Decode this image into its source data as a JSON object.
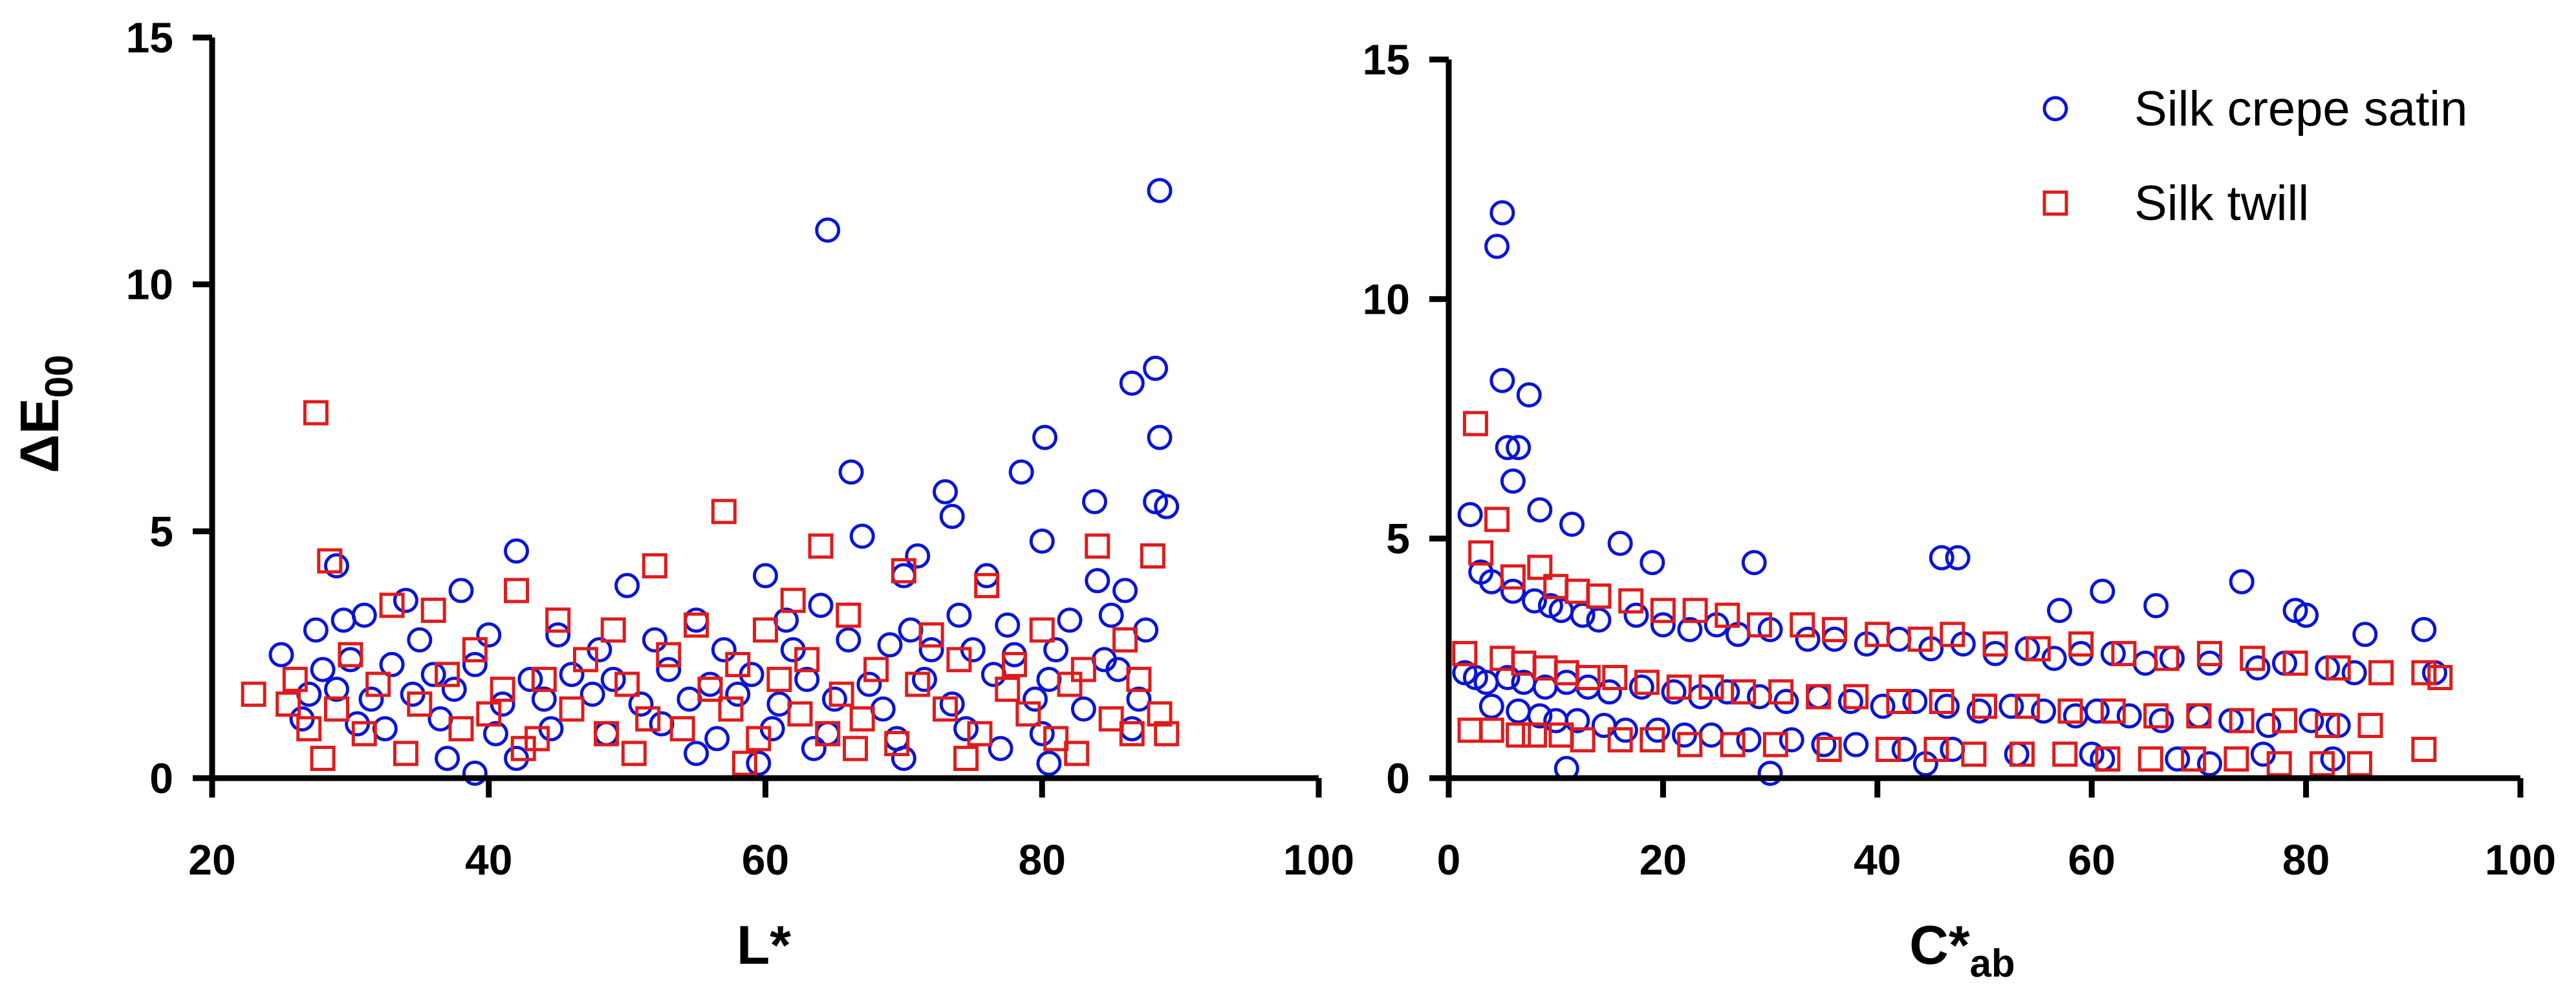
{
  "colors": {
    "satin": "#0a14d6",
    "twill": "#e01b1b",
    "axis": "#000000"
  },
  "legend": {
    "placement": "top-right of right panel",
    "items": [
      {
        "label": "Silk crepe satin",
        "marker": "circle",
        "color": "#0a14d6"
      },
      {
        "label": "Silk twill",
        "marker": "square",
        "color": "#e01b1b"
      }
    ]
  },
  "chart_data": [
    {
      "type": "scatter",
      "title": "",
      "xlabel": "L*",
      "ylabel": "ΔE00",
      "xlim": [
        20,
        100
      ],
      "ylim": [
        0,
        15
      ],
      "xticks": [
        "20",
        "40",
        "60",
        "80",
        "100"
      ],
      "yticks": [
        "0",
        "5",
        "10",
        "15"
      ],
      "grid": false,
      "series": [
        {
          "name": "Silk crepe satin",
          "marker": "circle",
          "color": "#0a14d6",
          "x": [
            64.5,
            88.5,
            88.2,
            86.5,
            88.5,
            80.2,
            66.2,
            78.5,
            73.0,
            83.8,
            88.2,
            89.0,
            42.0,
            73.5,
            29.0,
            80.0,
            67.0,
            71.0,
            70.0,
            76.0,
            86.0,
            60.0,
            84.0,
            50.0,
            38.0,
            34.0,
            29.5,
            25.0,
            27.5,
            55.0,
            61.5,
            64.0,
            70.5,
            74.0,
            77.5,
            82.0,
            85.0,
            87.5,
            31.0,
            35.0,
            40.0,
            45.0,
            48.0,
            52.0,
            57.0,
            62.0,
            66.0,
            69.0,
            72.0,
            75.0,
            78.0,
            81.0,
            84.5,
            28.0,
            30.0,
            33.0,
            36.0,
            39.0,
            43.0,
            46.0,
            49.0,
            53.0,
            56.0,
            59.0,
            63.0,
            67.5,
            71.5,
            76.5,
            80.5,
            85.5,
            27.0,
            29.0,
            31.5,
            34.5,
            37.5,
            41.0,
            44.0,
            47.5,
            51.0,
            54.5,
            58.0,
            61.0,
            65.0,
            68.5,
            73.5,
            79.5,
            83.0,
            87.0,
            26.5,
            30.5,
            32.5,
            36.5,
            40.5,
            44.5,
            48.5,
            52.5,
            56.5,
            60.5,
            64.5,
            69.5,
            74.5,
            80.0,
            86.5,
            39.0,
            59.5,
            80.5,
            42.0,
            37.0,
            55.0,
            63.5,
            70.0,
            77.0
          ],
          "y": [
            11.1,
            11.9,
            8.3,
            8.0,
            6.9,
            6.9,
            6.2,
            6.2,
            5.8,
            5.6,
            5.6,
            5.5,
            4.6,
            5.3,
            4.3,
            4.8,
            4.9,
            4.5,
            4.1,
            4.1,
            3.8,
            4.1,
            4.0,
            3.9,
            3.8,
            3.6,
            3.2,
            2.5,
            3.0,
            3.2,
            3.2,
            3.5,
            3.0,
            3.3,
            3.1,
            3.2,
            3.3,
            3.0,
            3.3,
            2.8,
            2.9,
            2.9,
            2.6,
            2.8,
            2.6,
            2.6,
            2.8,
            2.7,
            2.6,
            2.6,
            2.5,
            2.6,
            2.4,
            2.2,
            2.4,
            2.3,
            2.1,
            2.3,
            2.0,
            2.1,
            2.0,
            2.2,
            1.9,
            2.1,
            2.0,
            1.9,
            2.0,
            2.1,
            2.0,
            2.2,
            1.7,
            1.8,
            1.6,
            1.7,
            1.8,
            1.5,
            1.6,
            1.7,
            1.5,
            1.6,
            1.7,
            1.5,
            1.6,
            1.4,
            1.5,
            1.6,
            1.4,
            1.6,
            1.2,
            1.1,
            1.0,
            1.2,
            0.9,
            1.0,
            0.9,
            1.1,
            0.8,
            1.0,
            0.9,
            0.8,
            1.0,
            0.9,
            1.0,
            0.1,
            0.3,
            0.3,
            0.4,
            0.4,
            0.5,
            0.6,
            0.4,
            0.6
          ]
        },
        {
          "name": "Silk twill",
          "marker": "square",
          "color": "#e01b1b",
          "x": [
            27.5,
            57.0,
            28.5,
            52.0,
            64.0,
            84.0,
            88.0,
            70.0,
            76.0,
            62.0,
            42.0,
            33.0,
            36.0,
            45.0,
            49.0,
            55.0,
            60.0,
            66.0,
            72.0,
            80.0,
            86.0,
            23.0,
            30.0,
            39.0,
            47.0,
            53.0,
            58.0,
            63.0,
            68.0,
            74.0,
            78.0,
            83.0,
            26.0,
            32.0,
            37.0,
            41.0,
            44.0,
            50.0,
            56.0,
            61.0,
            65.5,
            71.0,
            77.5,
            82.0,
            87.0,
            25.5,
            29.0,
            35.0,
            40.0,
            46.0,
            51.5,
            57.5,
            62.5,
            67.0,
            73.0,
            79.0,
            85.0,
            88.5,
            27.0,
            31.0,
            38.0,
            43.5,
            48.5,
            54.0,
            59.5,
            64.5,
            69.5,
            75.5,
            81.0,
            86.5,
            28.0,
            34.0,
            42.5,
            50.5,
            58.5,
            66.5,
            74.5,
            82.5,
            89.0
          ],
          "y": [
            7.4,
            5.4,
            4.4,
            4.3,
            4.7,
            4.7,
            4.5,
            4.2,
            3.9,
            3.6,
            3.8,
            3.5,
            3.4,
            3.2,
            3.0,
            3.1,
            3.0,
            3.3,
            2.9,
            3.0,
            2.8,
            1.7,
            2.5,
            2.6,
            2.4,
            2.5,
            2.3,
            2.4,
            2.2,
            2.4,
            2.3,
            2.2,
            2.0,
            1.9,
            2.1,
            1.8,
            2.0,
            1.9,
            1.8,
            2.0,
            1.7,
            1.9,
            1.8,
            1.9,
            2.0,
            1.5,
            1.4,
            1.5,
            1.3,
            1.4,
            1.2,
            1.4,
            1.3,
            1.2,
            1.4,
            1.3,
            1.2,
            1.3,
            1.0,
            0.9,
            1.0,
            0.8,
            0.9,
            1.0,
            0.8,
            0.9,
            0.7,
            0.9,
            0.8,
            0.9,
            0.4,
            0.5,
            0.6,
            0.5,
            0.3,
            0.6,
            0.4,
            0.5,
            0.9
          ]
        }
      ]
    },
    {
      "type": "scatter",
      "title": "",
      "xlabel": "C*ab",
      "ylabel": "",
      "xlim": [
        0,
        100
      ],
      "ylim": [
        0,
        15
      ],
      "xticks": [
        "0",
        "20",
        "40",
        "60",
        "80",
        "100"
      ],
      "yticks": [
        "0",
        "5",
        "10",
        "15"
      ],
      "grid": false,
      "series": [
        {
          "name": "Silk crepe satin",
          "marker": "circle",
          "color": "#0a14d6",
          "x": [
            5.0,
            4.5,
            5.0,
            7.5,
            5.5,
            6.5,
            6.0,
            8.5,
            11.5,
            2.0,
            16.0,
            19.0,
            28.5,
            46.0,
            47.5,
            74.0,
            61.0,
            66.0,
            57.0,
            79.0,
            80.0,
            85.5,
            91.0,
            3.0,
            4.0,
            6.0,
            8.0,
            9.5,
            10.5,
            12.5,
            14.0,
            17.5,
            20.0,
            22.5,
            25.0,
            27.0,
            30.0,
            33.5,
            36.0,
            39.0,
            42.0,
            45.0,
            48.0,
            51.0,
            54.0,
            56.5,
            59.0,
            62.0,
            65.0,
            67.5,
            71.0,
            75.5,
            78.0,
            82.0,
            84.5,
            92.0,
            1.5,
            2.5,
            3.5,
            5.5,
            7.0,
            9.0,
            11.0,
            13.0,
            15.0,
            18.0,
            21.0,
            23.5,
            26.0,
            29.0,
            31.5,
            34.5,
            37.5,
            40.5,
            43.5,
            46.5,
            49.5,
            52.5,
            55.5,
            58.5,
            60.5,
            63.5,
            66.5,
            70.0,
            73.0,
            76.5,
            80.5,
            83.0,
            4.0,
            6.5,
            8.5,
            10.0,
            12.0,
            14.5,
            16.5,
            19.5,
            22.0,
            24.5,
            28.0,
            32.0,
            35.0,
            38.0,
            42.5,
            47.0,
            53.0,
            60.0,
            68.0,
            76.0,
            82.5,
            11.0,
            30.0,
            44.5,
            61.0,
            71.0
          ],
          "y": [
            11.8,
            11.1,
            8.3,
            8.0,
            6.9,
            6.9,
            6.2,
            5.6,
            5.3,
            5.5,
            4.9,
            4.5,
            4.5,
            4.6,
            4.6,
            4.1,
            3.9,
            3.6,
            3.5,
            3.5,
            3.4,
            3.0,
            3.1,
            4.3,
            4.1,
            3.9,
            3.7,
            3.6,
            3.5,
            3.4,
            3.3,
            3.4,
            3.2,
            3.1,
            3.2,
            3.0,
            3.1,
            2.9,
            2.9,
            2.8,
            2.9,
            2.7,
            2.8,
            2.6,
            2.7,
            2.5,
            2.6,
            2.6,
            2.4,
            2.5,
            2.4,
            2.3,
            2.4,
            2.3,
            2.2,
            2.2,
            2.2,
            2.1,
            2.0,
            2.1,
            2.0,
            1.9,
            2.0,
            1.9,
            1.8,
            1.9,
            1.8,
            1.7,
            1.8,
            1.7,
            1.6,
            1.7,
            1.6,
            1.5,
            1.6,
            1.5,
            1.4,
            1.5,
            1.4,
            1.3,
            1.4,
            1.3,
            1.2,
            1.3,
            1.2,
            1.1,
            1.2,
            1.1,
            1.5,
            1.4,
            1.3,
            1.2,
            1.2,
            1.1,
            1.0,
            1.0,
            0.9,
            0.9,
            0.8,
            0.8,
            0.7,
            0.7,
            0.6,
            0.6,
            0.5,
            0.5,
            0.4,
            0.5,
            0.4,
            0.2,
            0.1,
            0.3,
            0.4,
            0.3
          ]
        },
        {
          "name": "Silk twill",
          "marker": "square",
          "color": "#e01b1b",
          "x": [
            2.5,
            4.5,
            3.0,
            8.5,
            10.0,
            6.0,
            12.0,
            14.0,
            17.0,
            20.0,
            23.0,
            26.0,
            29.0,
            33.0,
            36.0,
            40.0,
            44.0,
            47.0,
            51.0,
            55.0,
            59.0,
            63.0,
            67.0,
            71.0,
            75.0,
            79.0,
            83.0,
            87.0,
            91.0,
            92.5,
            1.5,
            5.0,
            7.0,
            9.0,
            11.0,
            13.0,
            15.5,
            18.5,
            21.5,
            24.5,
            27.5,
            31.0,
            34.5,
            38.0,
            42.0,
            46.0,
            50.0,
            54.0,
            58.0,
            62.0,
            66.0,
            70.0,
            74.0,
            78.0,
            82.0,
            86.0,
            2.0,
            4.0,
            6.5,
            8.0,
            10.5,
            12.5,
            16.0,
            19.0,
            22.5,
            26.5,
            30.5,
            35.5,
            41.0,
            45.5,
            49.0,
            53.5,
            57.5,
            61.5,
            65.5,
            69.5,
            73.5,
            77.5,
            81.5,
            85.0,
            91.0
          ],
          "y": [
            7.4,
            5.4,
            4.7,
            4.4,
            4.0,
            4.2,
            3.9,
            3.8,
            3.7,
            3.5,
            3.5,
            3.4,
            3.2,
            3.2,
            3.1,
            3.0,
            2.9,
            3.0,
            2.8,
            2.7,
            2.8,
            2.6,
            2.5,
            2.6,
            2.5,
            2.4,
            2.3,
            2.2,
            2.2,
            2.1,
            2.6,
            2.5,
            2.4,
            2.3,
            2.2,
            2.1,
            2.1,
            2.0,
            1.9,
            1.9,
            1.8,
            1.8,
            1.7,
            1.7,
            1.6,
            1.6,
            1.5,
            1.5,
            1.4,
            1.4,
            1.3,
            1.3,
            1.2,
            1.2,
            1.1,
            1.1,
            1.0,
            1.0,
            0.9,
            0.9,
            0.9,
            0.8,
            0.8,
            0.8,
            0.7,
            0.7,
            0.7,
            0.6,
            0.6,
            0.6,
            0.5,
            0.5,
            0.5,
            0.4,
            0.4,
            0.4,
            0.4,
            0.3,
            0.3,
            0.3,
            0.6
          ]
        }
      ]
    }
  ]
}
